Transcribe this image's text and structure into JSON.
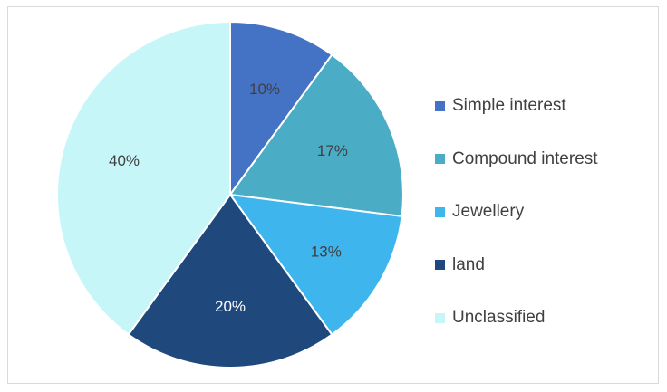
{
  "chart_data": {
    "type": "pie",
    "title": "",
    "categories": [
      "Simple interest",
      "Compound interest",
      "Jewellery",
      "land",
      "Unclassified"
    ],
    "values": [
      10,
      17,
      13,
      20,
      40
    ],
    "data_labels": [
      "10%",
      "17%",
      "13%",
      "20%",
      "40%"
    ],
    "colors": [
      "#4472c4",
      "#4bacc6",
      "#3fb5ee",
      "#1f497d",
      "#c6f6f8"
    ],
    "label_colors": [
      "#404040",
      "#404040",
      "#404040",
      "#ffffff",
      "#404040"
    ],
    "legend_position": "right",
    "start_angle": "top, clockwise"
  }
}
